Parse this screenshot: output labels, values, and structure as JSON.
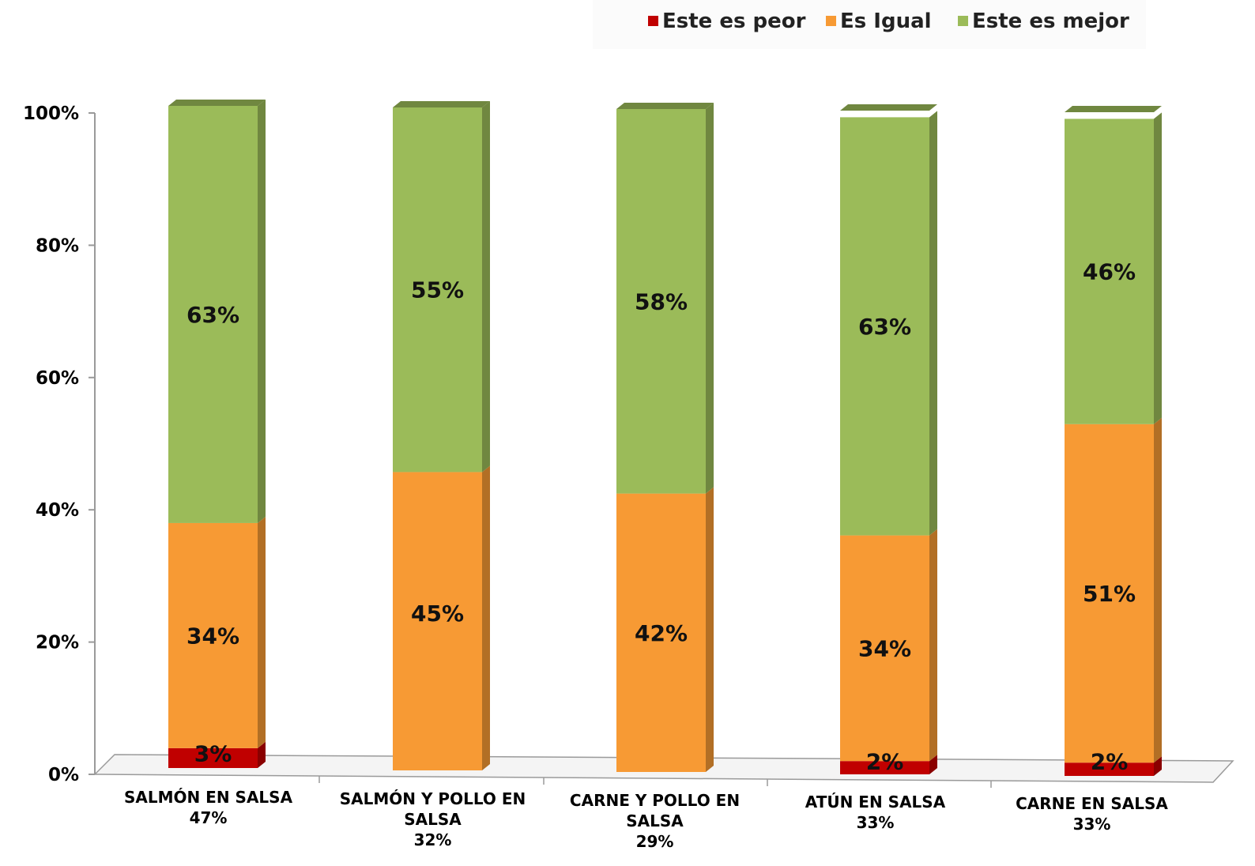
{
  "chart_data": {
    "type": "bar",
    "stacked": true,
    "percent_stacked": true,
    "categories": [
      {
        "lines": [
          "SALMÓN EN SALSA"
        ],
        "share": "47%"
      },
      {
        "lines": [
          "SALMÓN Y POLLO EN",
          "SALSA"
        ],
        "share": "32%"
      },
      {
        "lines": [
          "CARNE Y POLLO EN",
          "SALSA"
        ],
        "share": "29%"
      },
      {
        "lines": [
          "ATÚN EN SALSA"
        ],
        "share": "33%"
      },
      {
        "lines": [
          "CARNE EN SALSA"
        ],
        "share": "33%"
      }
    ],
    "series": [
      {
        "name": "Este es peor",
        "color": "#c00000",
        "values": [
          3,
          0,
          0,
          2,
          2
        ],
        "labels": [
          "3%",
          "",
          "",
          "2%",
          "2%"
        ]
      },
      {
        "name": "Es Igual",
        "color": "#f79a34",
        "values": [
          34,
          45,
          42,
          34,
          51
        ],
        "labels": [
          "34%",
          "45%",
          "42%",
          "34%",
          "51%"
        ]
      },
      {
        "name": "Este es mejor",
        "color": "#9bbb59",
        "values": [
          63,
          55,
          58,
          63,
          46
        ],
        "labels": [
          "63%",
          "55%",
          "58%",
          "63%",
          "46%"
        ]
      }
    ],
    "y_ticks": [
      "0%",
      "20%",
      "40%",
      "60%",
      "80%",
      "100%"
    ],
    "ylim": [
      0,
      100
    ],
    "legend_position": "top-right",
    "grid": false
  }
}
